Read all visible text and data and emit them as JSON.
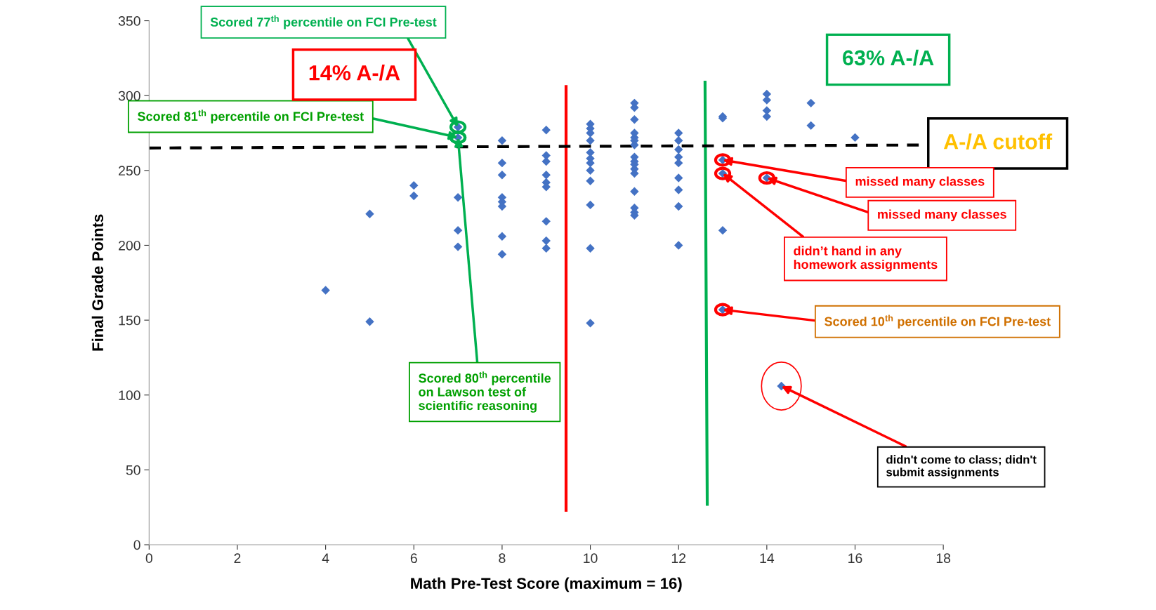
{
  "chart_data": {
    "type": "scatter",
    "xlabel": "Math Pre-Test Score (maximum = 16)",
    "ylabel": "Final Grade Points",
    "xlim": [
      0,
      18
    ],
    "xticks": [
      0,
      2,
      4,
      6,
      8,
      10,
      12,
      14,
      16,
      18
    ],
    "ylim": [
      0,
      350
    ],
    "yticks": [
      0,
      50,
      100,
      150,
      200,
      250,
      300,
      350
    ],
    "grid": false,
    "legend": false,
    "series": [
      {
        "marker": "diamond",
        "color": "#4472c4",
        "x": [
          4,
          5,
          5,
          6,
          6,
          7,
          7,
          7,
          7,
          7,
          8,
          8,
          8,
          8,
          8,
          8,
          8,
          8,
          9,
          9,
          9,
          9,
          9,
          9,
          9,
          9,
          9,
          10,
          10,
          10,
          10,
          10,
          10,
          10,
          10,
          10,
          10,
          10,
          10,
          11,
          11,
          11,
          11,
          11,
          11,
          11,
          11,
          11,
          11,
          11,
          11,
          11,
          11,
          11,
          11,
          12,
          12,
          12,
          12,
          12,
          12,
          12,
          12,
          12,
          13,
          13,
          13,
          13,
          13,
          13,
          14,
          14,
          14,
          14,
          14,
          15,
          15,
          16,
          14.33
        ],
        "values": [
          170,
          221,
          149,
          240,
          233,
          279,
          272,
          232,
          210,
          199,
          270,
          255,
          247,
          232,
          229,
          226,
          206,
          194,
          277,
          260,
          256,
          247,
          242,
          239,
          216,
          203,
          198,
          281,
          278,
          275,
          270,
          262,
          258,
          255,
          250,
          243,
          227,
          198,
          148,
          295,
          292,
          284,
          275,
          272,
          270,
          267,
          259,
          256,
          254,
          251,
          248,
          236,
          225,
          222,
          220,
          275,
          270,
          264,
          259,
          255,
          245,
          237,
          226,
          200,
          286,
          285,
          257,
          248,
          210,
          157,
          301,
          297,
          290,
          286,
          245,
          295,
          280,
          272,
          106
        ]
      },
      {
        "type": "line",
        "color": "#ff0000",
        "line_style": "solid",
        "x": [
          9.45,
          9.45
        ],
        "values": [
          306,
          23
        ]
      },
      {
        "type": "line",
        "color": "#00b050",
        "line_style": "solid",
        "x": [
          12.6,
          12.65
        ],
        "values": [
          309,
          27
        ]
      },
      {
        "type": "line",
        "color": "#000000",
        "line_style": "dashed",
        "x": [
          0,
          17.6
        ],
        "values": [
          265,
          267
        ]
      }
    ],
    "annotations": [
      {
        "text": "Scored 77$^{th}$ percentile on FCI Pre-test",
        "x": 7,
        "y": 279
      },
      {
        "text": "Scored 81$^{th}$ percentile on FCI Pre-test",
        "x": 7,
        "y": 272
      },
      {
        "text": "Scored 80$^{th}$ percentile\non Lawson test of\nscientific reasoning",
        "x": 7,
        "y": 272
      },
      "14% A-/A",
      "63% A-/A",
      "A-/A cutoff",
      {
        "text": "missed many classes",
        "x": 13,
        "y": 257
      },
      {
        "text": "missed many classes",
        "x": 14,
        "y": 245
      },
      {
        "text": "didn’t hand in any\nhomework assignments",
        "x": 13,
        "y": 248
      },
      {
        "text": "Scored 10$^{th}$ percentile on FCI Pre-test",
        "x": 13,
        "y": 157
      },
      {
        "text": "didn't come to class; didn't\nsubmit assignments",
        "x": 14.33,
        "y": 106
      }
    ]
  }
}
